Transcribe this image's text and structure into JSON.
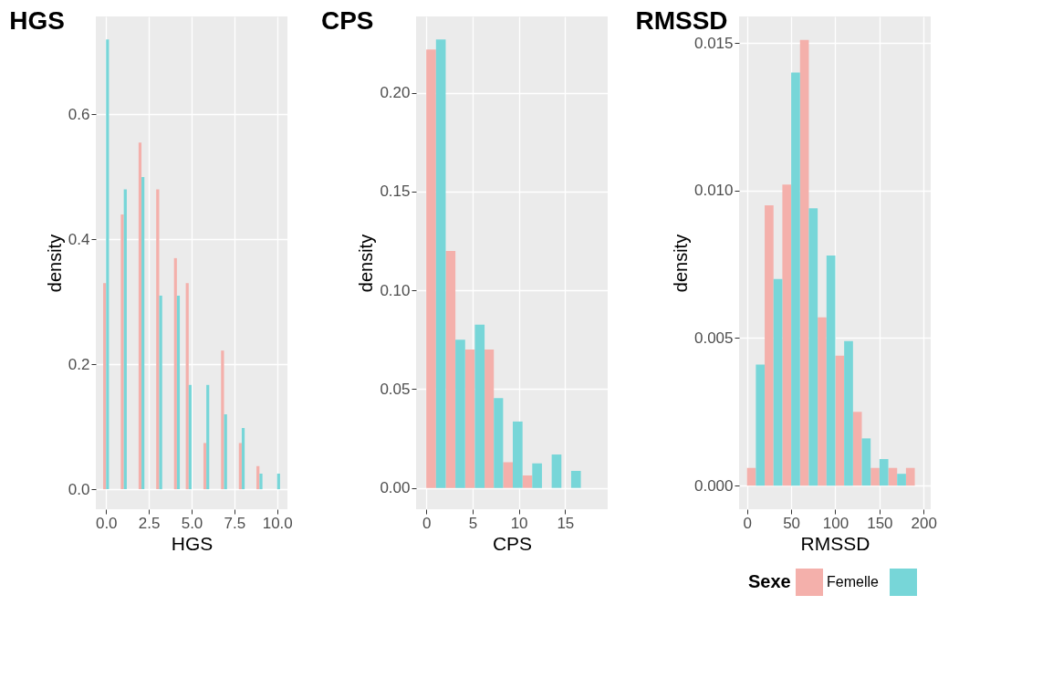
{
  "chart_data": [
    {
      "type": "histogram",
      "title": "HGS",
      "xlabel": "HGS",
      "ylabel": "density",
      "grid": true,
      "legend": false,
      "bins": [
        -0.17,
        0.17,
        0.52,
        0.86,
        1.21,
        1.55,
        1.9,
        2.24,
        2.59,
        2.93,
        3.28,
        3.62,
        3.97,
        4.31,
        4.66,
        5.0,
        5.34,
        5.69,
        6.03,
        6.38,
        6.72,
        7.07,
        7.41,
        7.76,
        8.1,
        8.45,
        8.79,
        9.14,
        9.48,
        9.83,
        10.17
      ],
      "series": [
        {
          "name": null,
          "color": "#f4b0ab",
          "values": [
            0.33,
            null,
            null,
            0.44,
            null,
            null,
            0.555,
            null,
            null,
            0.48,
            null,
            null,
            0.37,
            null,
            0.33,
            null,
            null,
            0.074,
            null,
            null,
            0.222,
            null,
            null,
            0.074,
            null,
            null,
            0.037,
            null,
            null,
            null
          ]
        },
        {
          "name": null,
          "color": "#77d6d8",
          "values": [
            0.72,
            null,
            null,
            0.48,
            null,
            null,
            0.5,
            null,
            null,
            0.31,
            null,
            null,
            0.31,
            null,
            0.167,
            null,
            null,
            0.167,
            null,
            null,
            0.12,
            null,
            null,
            0.098,
            null,
            null,
            0.025,
            null,
            null,
            0.025
          ]
        }
      ],
      "xlim": [
        -0.6,
        10.6
      ],
      "xticks": [
        {
          "value": 0,
          "label": "0.0"
        },
        {
          "value": 2.5,
          "label": "2.5"
        },
        {
          "value": 5,
          "label": "5.0"
        },
        {
          "value": 7.5,
          "label": "7.5"
        },
        {
          "value": 10,
          "label": "10.0"
        }
      ],
      "ylim": [
        -0.032,
        0.757
      ],
      "yticks": [
        {
          "value": 0,
          "label": "0.0"
        },
        0.2,
        0.4,
        0.6
      ]
    },
    {
      "type": "histogram",
      "title": "CPS",
      "xlabel": "CPS",
      "ylabel": "density",
      "grid": true,
      "legend": false,
      "bins": [
        0,
        2.1,
        4.2,
        6.3,
        8.3,
        10.4,
        12.5,
        14.6,
        16.7
      ],
      "series": [
        {
          "name": null,
          "color": "#f4b0ab",
          "values": [
            0.222,
            0.12,
            0.07,
            0.07,
            0.013,
            0.0063,
            null,
            null
          ]
        },
        {
          "name": null,
          "color": "#77d6d8",
          "values": [
            0.227,
            0.075,
            0.0826,
            0.0455,
            0.0336,
            0.0124,
            0.0169,
            0.0086
          ]
        }
      ],
      "xlim": [
        -1.1,
        19.6
      ],
      "xticks": [
        0,
        5,
        10,
        15
      ],
      "ylim": [
        -0.0108,
        0.2387
      ],
      "yticks": [
        {
          "value": 0,
          "label": "0.00"
        },
        0.05,
        {
          "value": 0.1,
          "label": "0.10"
        },
        0.15,
        {
          "value": 0.2,
          "label": "0.20"
        }
      ]
    },
    {
      "type": "histogram",
      "title": "RMSSD",
      "xlabel": "RMSSD",
      "ylabel": "density",
      "grid": true,
      "legend": "bottom",
      "legend_title": "Sexe",
      "bins": [
        0,
        20,
        40,
        60,
        80,
        100,
        120,
        140,
        160,
        180,
        200
      ],
      "series": [
        {
          "name": "Femelle",
          "color": "#f4b0ab",
          "values": [
            0.0006,
            0.0095,
            0.0102,
            0.0151,
            0.0057,
            0.0044,
            0.0025,
            0.0006,
            0.0006,
            0.0006
          ]
        },
        {
          "name": null,
          "color": "#77d6d8",
          "values": [
            0.0041,
            0.007,
            0.014,
            0.0094,
            0.0078,
            0.0049,
            0.0016,
            0.0009,
            0.0004,
            null
          ]
        }
      ],
      "xlim": [
        -9,
        208
      ],
      "xticks": [
        0,
        50,
        100,
        150,
        200
      ],
      "ylim": [
        -0.0008,
        0.0159
      ],
      "yticks": [
        {
          "value": 0,
          "label": "0.000"
        },
        0.005,
        {
          "value": 0.01,
          "label": "0.010"
        },
        0.015
      ]
    }
  ]
}
